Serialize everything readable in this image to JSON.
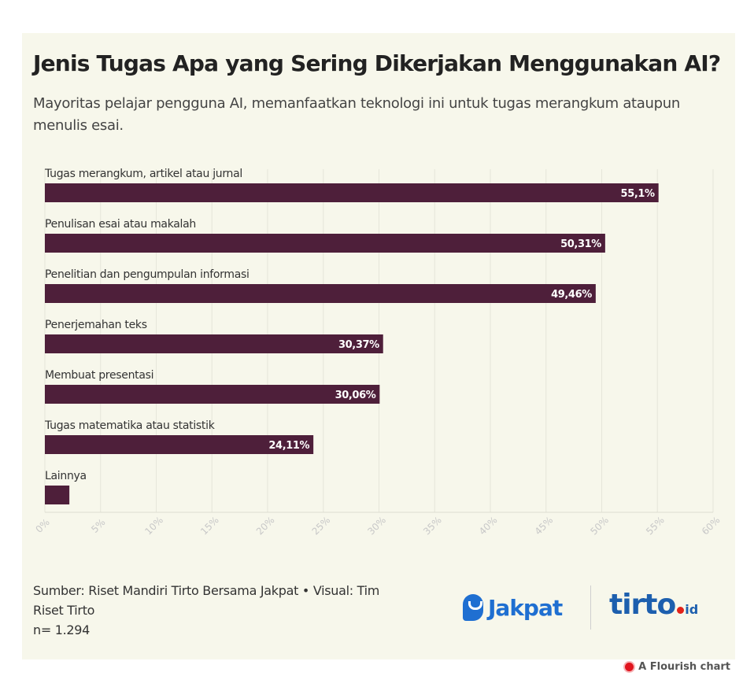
{
  "title": "Jenis Tugas Apa yang Sering Dikerjakan Menggunakan AI?",
  "subtitle": "Mayoritas pelajar pengguna AI, memanfaatkan teknologi ini untuk tugas merangkum ataupun menulis esai.",
  "chart_data": {
    "type": "bar",
    "orientation": "horizontal",
    "categories": [
      "Tugas merangkum, artikel atau jurnal",
      "Penulisan esai atau makalah",
      "Penelitian dan pengumpulan informasi",
      "Penerjemahan teks",
      "Membuat presentasi",
      "Tugas matematika atau statistik",
      "Lainnya"
    ],
    "values": [
      55.1,
      50.31,
      49.46,
      30.37,
      30.06,
      24.11,
      2.2
    ],
    "value_labels": [
      "55,1%",
      "50,31%",
      "49,46%",
      "30,37%",
      "30,06%",
      "24,11%",
      ""
    ],
    "xlim": [
      0,
      60
    ],
    "x_ticks": [
      "0%",
      "5%",
      "10%",
      "15%",
      "20%",
      "25%",
      "30%",
      "35%",
      "40%",
      "45%",
      "50%",
      "55%",
      "60%"
    ],
    "grid": true,
    "bar_color": "#4e1f3a"
  },
  "source": {
    "line1": "Sumber: Riset Mandiri Tirto Bersama Jakpat • Visual: Tim Riset Tirto",
    "line2": "n= 1.294"
  },
  "logos": {
    "jakpat": "Jakpat",
    "tirto": "tirto",
    "tirto_suffix": "id"
  },
  "flourish": "A Flourish chart"
}
